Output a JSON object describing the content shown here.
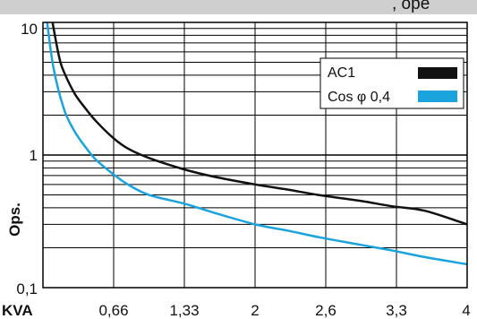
{
  "header": {
    "clipped_text": ", ope"
  },
  "chart_data": {
    "type": "line",
    "title": "",
    "xlabel": "KVA",
    "ylabel": "Ops.",
    "x_ticks": [
      "0,66",
      "1,33",
      "2",
      "2,6",
      "3,3",
      "4"
    ],
    "y_ticks": [
      "10",
      "1",
      "0,1"
    ],
    "xlim": [
      0,
      4
    ],
    "ylim": [
      0.1,
      10
    ],
    "y_scale": "log",
    "grid": true,
    "legend_position": "top-right",
    "series": [
      {
        "name": "AC1",
        "color": "#111111",
        "x": [
          0.09,
          0.15,
          0.2,
          0.3,
          0.4,
          0.5,
          0.66,
          0.8,
          1.0,
          1.33,
          1.6,
          2.0,
          2.3,
          2.6,
          3.0,
          3.3,
          3.6,
          4.0
        ],
        "y": [
          10,
          5.6,
          4.2,
          2.9,
          2.25,
          1.8,
          1.35,
          1.12,
          0.95,
          0.78,
          0.69,
          0.6,
          0.55,
          0.5,
          0.45,
          0.41,
          0.38,
          0.3
        ]
      },
      {
        "name": "Cos φ 0,4",
        "color": "#1aa3dc",
        "x": [
          0.04,
          0.1,
          0.2,
          0.3,
          0.4,
          0.5,
          0.66,
          0.8,
          1.0,
          1.33,
          1.6,
          2.0,
          2.3,
          2.6,
          3.0,
          3.3,
          3.6,
          4.0
        ],
        "y": [
          10,
          4.5,
          2.2,
          1.5,
          1.15,
          0.92,
          0.72,
          0.6,
          0.5,
          0.43,
          0.37,
          0.3,
          0.27,
          0.24,
          0.21,
          0.19,
          0.17,
          0.15
        ]
      }
    ]
  }
}
